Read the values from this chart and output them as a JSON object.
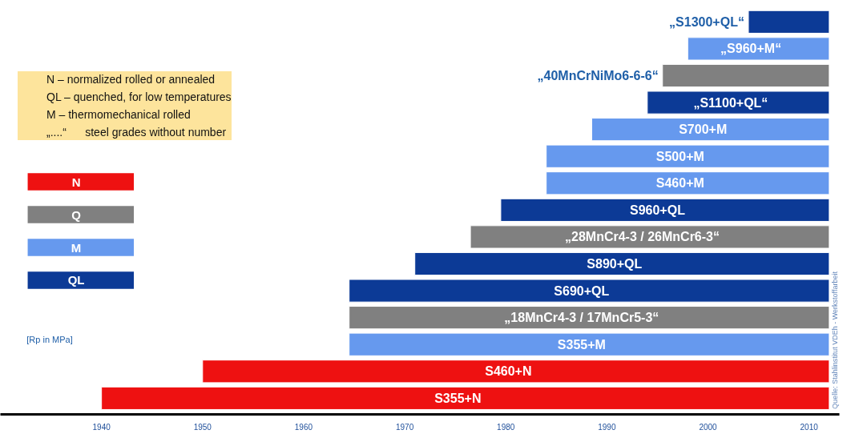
{
  "chart_data": {
    "type": "bar",
    "orientation": "horizontal",
    "tick_labels": "x",
    "legend": "left",
    "grid": false,
    "categories": [
      "„S1300+QL“",
      "„S960+M“",
      "„40MnCrNiMo6-6-6“",
      "„S1100+QL“",
      "S700+M",
      "S500+M",
      "S460+M",
      "S960+QL",
      "„28MnCr4-3 / 26MnCr6-3“",
      "S890+QL",
      "S690+QL",
      "„18MnCr4-3 / 17MnCr5-3“",
      "S355+M",
      "S460+N",
      "S355+N"
    ],
    "series": [
      {
        "name": "N",
        "color": "#ee1111",
        "base": [
          null,
          null,
          null,
          null,
          null,
          null,
          null,
          null,
          null,
          null,
          null,
          null,
          null,
          1950,
          1940
        ],
        "values": [
          null,
          null,
          null,
          null,
          null,
          null,
          null,
          null,
          null,
          null,
          null,
          null,
          null,
          62,
          72
        ]
      },
      {
        "name": "Q",
        "color": "#808080",
        "base": [
          null,
          null,
          1995.5,
          null,
          null,
          null,
          null,
          null,
          1976.5,
          null,
          null,
          1964.5,
          null,
          null,
          null
        ],
        "values": [
          null,
          null,
          16.5,
          null,
          null,
          null,
          null,
          null,
          35.5,
          null,
          null,
          47.5,
          null,
          null,
          null
        ]
      },
      {
        "name": "M",
        "color": "#6699ee",
        "base": [
          null,
          1998,
          null,
          null,
          1988.5,
          1984,
          1984,
          null,
          null,
          null,
          null,
          null,
          1964.5,
          null,
          null
        ],
        "values": [
          null,
          14,
          null,
          null,
          23.5,
          28,
          28,
          null,
          null,
          null,
          null,
          null,
          47.5,
          null,
          null
        ]
      },
      {
        "name": "QL",
        "color": "#0c3a96",
        "base": [
          2004,
          null,
          null,
          1994,
          null,
          null,
          null,
          1979.5,
          null,
          1971,
          1964.5,
          null,
          null,
          null,
          null
        ],
        "values": [
          8,
          null,
          null,
          18,
          null,
          null,
          null,
          32.5,
          null,
          41,
          47.5,
          null,
          null,
          null,
          null
        ]
      }
    ],
    "xlim": [
      1930,
      2013
    ],
    "xticks": [
      1940,
      1950,
      1960,
      1970,
      1980,
      1990,
      2000,
      2010
    ],
    "annotations": [
      "N – normalized rolled or annealed",
      "QL – quenched, for low temperatures",
      "M – thermomechanical rolled",
      "„....“      steel grades without number",
      "[Rp in MPa]",
      "Quelle: Stahlinstitut VDEh - Werkstoffarbeit"
    ]
  }
}
